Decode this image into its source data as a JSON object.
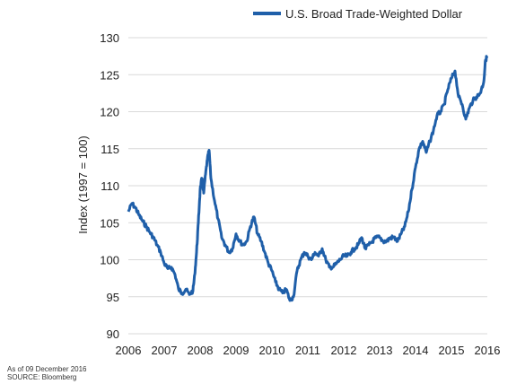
{
  "chart_data": {
    "type": "line",
    "title": "",
    "xlabel": "",
    "ylabel": "Index (1997 = 100)",
    "xlim": [
      2006,
      2016
    ],
    "ylim": [
      90,
      130
    ],
    "x_ticks": [
      "2006",
      "2007",
      "2008",
      "2009",
      "2010",
      "2011",
      "2012",
      "2013",
      "2014",
      "2015",
      "2016"
    ],
    "y_ticks": [
      "90",
      "95",
      "100",
      "105",
      "110",
      "115",
      "120",
      "125",
      "130"
    ],
    "grid": "horizontal",
    "legend_position": "top-right",
    "series": [
      {
        "name": "U.S. Broad Trade-Weighted Dollar",
        "color": "#1f5fa9",
        "x": [
          2006.0,
          2006.1,
          2006.2,
          2006.3,
          2006.4,
          2006.5,
          2006.6,
          2006.7,
          2006.8,
          2006.9,
          2007.0,
          2007.1,
          2007.2,
          2007.3,
          2007.4,
          2007.5,
          2007.6,
          2007.7,
          2007.8,
          2007.85,
          2007.9,
          2007.95,
          2008.0,
          2008.05,
          2008.1,
          2008.15,
          2008.2,
          2008.25,
          2008.3,
          2008.4,
          2008.5,
          2008.6,
          2008.7,
          2008.8,
          2008.9,
          2009.0,
          2009.1,
          2009.2,
          2009.3,
          2009.4,
          2009.5,
          2009.6,
          2009.7,
          2009.8,
          2009.9,
          2010.0,
          2010.1,
          2010.2,
          2010.3,
          2010.4,
          2010.5,
          2010.6,
          2010.7,
          2010.8,
          2010.9,
          2011.0,
          2011.1,
          2011.2,
          2011.3,
          2011.4,
          2011.5,
          2011.6,
          2011.7,
          2011.8,
          2011.9,
          2012.0,
          2012.1,
          2012.2,
          2012.3,
          2012.4,
          2012.5,
          2012.6,
          2012.7,
          2012.8,
          2012.9,
          2013.0,
          2013.1,
          2013.2,
          2013.3,
          2013.4,
          2013.5,
          2013.6,
          2013.7,
          2013.8,
          2013.9,
          2014.0,
          2014.1,
          2014.2,
          2014.3,
          2014.4,
          2014.5,
          2014.6,
          2014.7,
          2014.8,
          2014.9,
          2015.0,
          2015.1,
          2015.2,
          2015.3,
          2015.4,
          2015.5,
          2015.6,
          2015.7,
          2015.8,
          2015.9,
          2015.95,
          2016.0
        ],
        "values": [
          106.5,
          107.6,
          107.0,
          106.0,
          105.2,
          104.5,
          103.7,
          103.0,
          102.0,
          101.0,
          99.5,
          98.8,
          99.0,
          98.0,
          96.0,
          95.5,
          96.0,
          95.3,
          95.8,
          98.0,
          101.0,
          105.0,
          109.5,
          111.0,
          109.0,
          111.5,
          113.5,
          114.8,
          111.0,
          108.0,
          105.5,
          103.0,
          102.0,
          101.0,
          101.5,
          103.5,
          102.5,
          102.0,
          102.5,
          104.5,
          105.8,
          103.5,
          102.5,
          101.0,
          99.5,
          98.5,
          97.0,
          96.0,
          95.5,
          96.0,
          94.5,
          95.0,
          98.5,
          100.0,
          101.0,
          100.5,
          100.0,
          101.0,
          100.5,
          101.5,
          100.0,
          99.0,
          99.0,
          99.5,
          100.0,
          100.5,
          100.5,
          101.0,
          101.5,
          102.0,
          103.0,
          101.5,
          102.0,
          102.5,
          103.0,
          103.0,
          102.5,
          102.5,
          103.0,
          103.0,
          102.5,
          103.5,
          104.5,
          106.5,
          109.5,
          112.5,
          115.0,
          116.0,
          114.5,
          116.0,
          117.5,
          119.5,
          120.0,
          121.0,
          123.0,
          124.5,
          125.5,
          122.0,
          121.0,
          119.0,
          120.5,
          121.5,
          122.0,
          122.5,
          124.0,
          127.0,
          127.5
        ]
      }
    ],
    "footnotes": [
      "As of 09 December 2016",
      "SOURCE: Bloomberg"
    ]
  }
}
